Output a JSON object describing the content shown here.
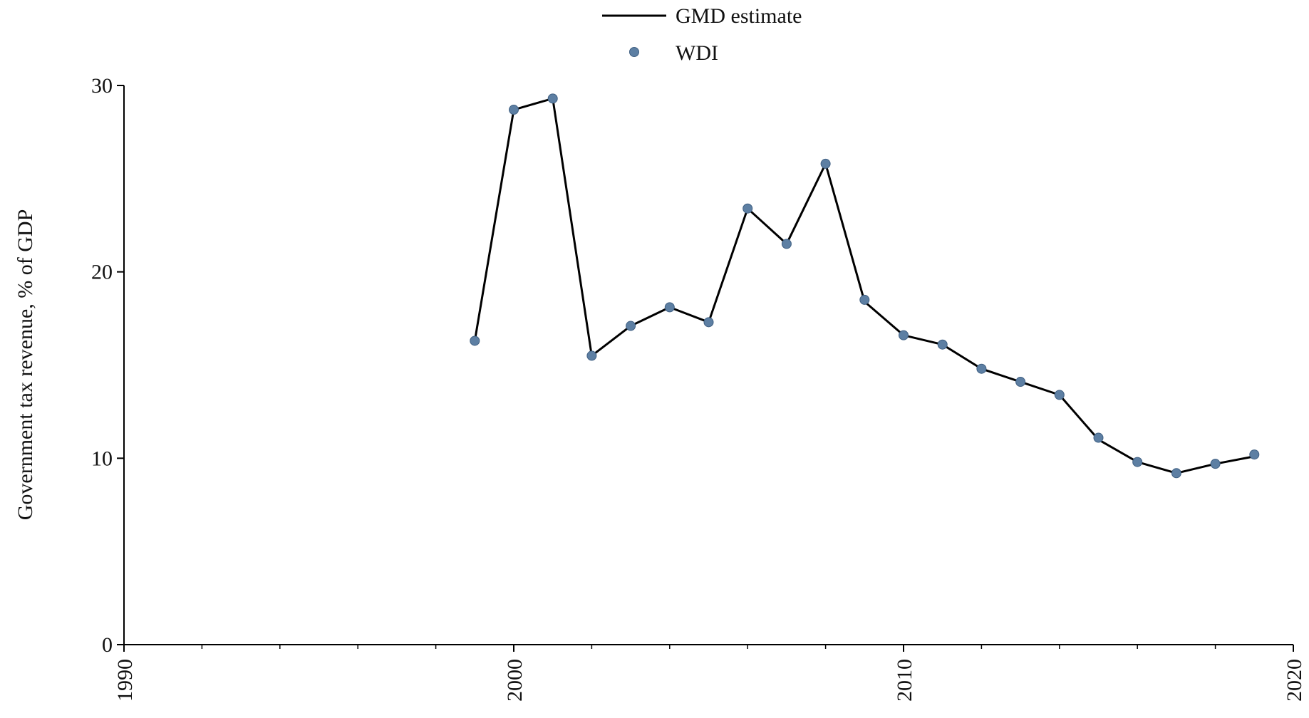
{
  "chart_data": {
    "type": "line",
    "ylabel": "Government tax revenue, % of GDP",
    "xlabel": "",
    "xlim": [
      1990,
      2020
    ],
    "ylim": [
      0,
      30
    ],
    "x_ticks": [
      1990,
      2000,
      2010,
      2020
    ],
    "y_ticks": [
      0,
      10,
      20,
      30
    ],
    "grid": false,
    "legend_position": "top-center",
    "series": [
      {
        "name": "GMD estimate",
        "kind": "line",
        "color": "#000000",
        "x": [
          1999,
          2000,
          2001,
          2002,
          2003,
          2004,
          2005,
          2006,
          2007,
          2008,
          2009,
          2010,
          2011,
          2012,
          2013,
          2014,
          2015,
          2016,
          2017,
          2018,
          2019
        ],
        "values": [
          16.3,
          28.7,
          29.3,
          15.5,
          17.1,
          18.1,
          17.3,
          23.4,
          21.5,
          25.8,
          18.4,
          16.6,
          16.1,
          14.8,
          14.1,
          13.4,
          11.0,
          9.8,
          9.2,
          9.7,
          10.1
        ]
      },
      {
        "name": "WDI",
        "kind": "scatter",
        "color": "#5d7fa3",
        "x": [
          1999,
          2000,
          2001,
          2002,
          2003,
          2004,
          2005,
          2006,
          2007,
          2008,
          2009,
          2010,
          2011,
          2012,
          2013,
          2014,
          2015,
          2016,
          2017,
          2018,
          2019
        ],
        "values": [
          16.3,
          28.7,
          29.3,
          15.5,
          17.1,
          18.1,
          17.3,
          23.4,
          21.5,
          25.8,
          18.5,
          16.6,
          16.1,
          14.8,
          14.1,
          13.4,
          11.1,
          9.8,
          9.2,
          9.7,
          10.2
        ]
      }
    ]
  }
}
